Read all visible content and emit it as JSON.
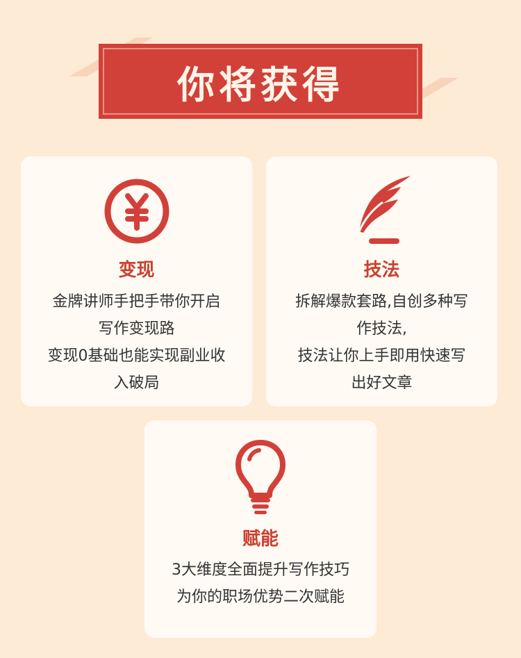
{
  "header": {
    "title": "你将获得"
  },
  "cards": [
    {
      "icon": "yen-coin-icon",
      "title": "变现",
      "lines": [
        "金牌讲师手把手带你开启",
        "写作变现路",
        "变现0基础也能实现副业收",
        "入破局"
      ]
    },
    {
      "icon": "quill-pen-icon",
      "title": "技法",
      "lines": [
        "拆解爆款套路,自创多种写",
        "作技法,",
        "技法让你上手即用快速写",
        "出好文章"
      ]
    },
    {
      "icon": "lightbulb-icon",
      "title": "赋能",
      "lines": [
        "3大维度全面提升写作技巧",
        "为你的职场优势二次赋能"
      ]
    }
  ],
  "colors": {
    "background": "#fdebd6",
    "accent": "#d2403a",
    "card": "#fffaf4",
    "title": "#c9412f"
  }
}
